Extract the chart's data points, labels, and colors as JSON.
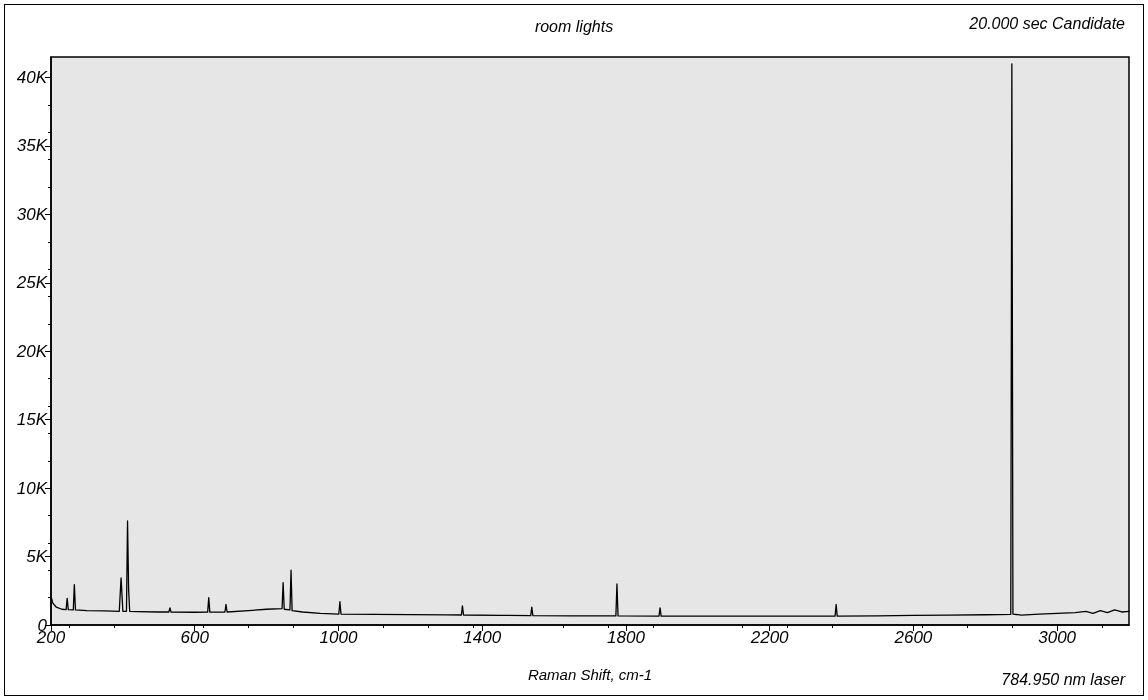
{
  "chart_data": {
    "type": "line",
    "title": "room lights",
    "xlabel": "Raman Shift, cm-1",
    "annotations": [
      "20.000 sec Candidate",
      "784.950 nm laser"
    ],
    "xlim": [
      200,
      3200
    ],
    "xticks": [
      200,
      600,
      1000,
      1400,
      1800,
      2200,
      2600,
      3000
    ],
    "ylim": [
      0,
      41500
    ],
    "yticks": [
      0,
      {
        "value": 5000,
        "label": "5K"
      },
      {
        "value": 10000,
        "label": "10K"
      },
      {
        "value": 15000,
        "label": "15K"
      },
      {
        "value": 20000,
        "label": "20K"
      },
      {
        "value": 25000,
        "label": "25K"
      },
      {
        "value": 30000,
        "label": "30K"
      },
      {
        "value": 35000,
        "label": "35K"
      },
      {
        "value": 40000,
        "label": "40K"
      }
    ],
    "grid": false,
    "marker": "none",
    "line_style": "solid",
    "series": [
      {
        "color": "#000000",
        "x": [
          200,
          205,
          215,
          230,
          242,
          245,
          248,
          262,
          265,
          268,
          300,
          350,
          390,
          395,
          400,
          410,
          413,
          416,
          419,
          440,
          500,
          528,
          531,
          534,
          600,
          636,
          639,
          642,
          684,
          687,
          690,
          750,
          800,
          843,
          846,
          849,
          865,
          868,
          871,
          900,
          950,
          1001,
          1004,
          1007,
          1100,
          1200,
          1300,
          1342,
          1345,
          1348,
          1450,
          1535,
          1538,
          1541,
          1650,
          1772,
          1775,
          1778,
          1892,
          1895,
          1898,
          2000,
          2200,
          2382,
          2385,
          2388,
          2500,
          2600,
          2700,
          2800,
          2871,
          2874,
          2877,
          2900,
          2950,
          3000,
          3050,
          3080,
          3100,
          3120,
          3140,
          3160,
          3180,
          3200
        ],
        "values": [
          2100,
          1600,
          1300,
          1150,
          1120,
          1950,
          1120,
          1100,
          2950,
          1100,
          1050,
          1030,
          1000,
          3450,
          1000,
          1000,
          7600,
          2600,
          1000,
          980,
          950,
          950,
          1250,
          950,
          930,
          940,
          2000,
          940,
          950,
          1500,
          950,
          1050,
          1150,
          1200,
          3100,
          1150,
          1100,
          4000,
          1050,
          950,
          850,
          800,
          1700,
          800,
          780,
          760,
          740,
          730,
          1400,
          730,
          700,
          690,
          1300,
          690,
          670,
          660,
          3000,
          660,
          650,
          1250,
          650,
          650,
          650,
          650,
          1500,
          650,
          660,
          700,
          720,
          750,
          780,
          41000,
          800,
          720,
          800,
          850,
          900,
          1000,
          850,
          1050,
          900,
          1100,
          950,
          1000
        ]
      }
    ]
  }
}
